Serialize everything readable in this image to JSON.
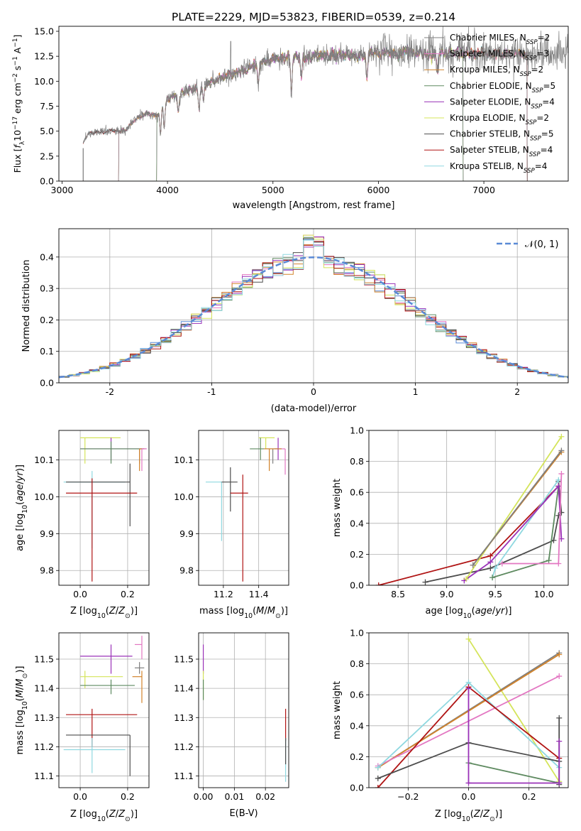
{
  "title": "PLATE=2229, MJD=53823, FIBERID=0539, z=0.214",
  "colors": {
    "Chabrier MILES": "#7f7f7f",
    "Salpeter MILES": "#e377c2",
    "Kroupa MILES": "#d2832a",
    "Chabrier ELODIE": "#5e8a60",
    "Salpeter ELODIE": "#9a32b8",
    "Kroupa ELODIE": "#d4e45a",
    "Chabrier STELIB": "#4d4d4d",
    "Salpeter STELIB": "#b01414",
    "Kroupa STELIB": "#8fd8e0",
    "gaussian": "#5a8ad6"
  },
  "chart_data": [
    {
      "id": "spectrum",
      "type": "line",
      "xlabel": "wavelength [Angstrom, rest frame]",
      "ylabel": "Flux [f_λ 10^-17 erg cm^-2 s^-1 A^-1]",
      "xlim": [
        2970,
        7800
      ],
      "ylim": [
        0,
        15.5
      ],
      "xticks": [
        3000,
        4000,
        5000,
        6000,
        7000
      ],
      "yticks": [
        0.0,
        2.5,
        5.0,
        7.5,
        10.0,
        12.5,
        15.0
      ],
      "legend_position": "top-right",
      "legend": [
        {
          "name": "Chabrier MILES",
          "nssp": "2"
        },
        {
          "name": "Salpeter MILES",
          "nssp": "3"
        },
        {
          "name": "Kroupa MILES",
          "nssp": "2"
        },
        {
          "name": "Chabrier ELODIE",
          "nssp": "5"
        },
        {
          "name": "Salpeter ELODIE",
          "nssp": "4"
        },
        {
          "name": "Kroupa ELODIE",
          "nssp": "2"
        },
        {
          "name": "Chabrier STELIB",
          "nssp": "5"
        },
        {
          "name": "Salpeter STELIB",
          "nssp": "4"
        },
        {
          "name": "Kroupa STELIB",
          "nssp": "4"
        }
      ],
      "continuum": [
        [
          3200,
          3.8
        ],
        [
          3250,
          4.8
        ],
        [
          3400,
          5.0
        ],
        [
          3600,
          5.0
        ],
        [
          3700,
          6.2
        ],
        [
          3800,
          6.8
        ],
        [
          3900,
          6.5
        ],
        [
          4000,
          8.3
        ],
        [
          4200,
          9.0
        ],
        [
          4400,
          9.8
        ],
        [
          4600,
          10.6
        ],
        [
          4800,
          11.5
        ],
        [
          5000,
          12.2
        ],
        [
          5300,
          12.5
        ],
        [
          5600,
          12.6
        ],
        [
          6000,
          12.8
        ],
        [
          6500,
          12.8
        ],
        [
          7000,
          12.8
        ],
        [
          7500,
          12.7
        ],
        [
          7800,
          12.6
        ]
      ],
      "data_range_x": [
        3200,
        7800
      ],
      "model_ranges": {
        "MILES": [
          3540,
          7410
        ],
        "ELODIE": [
          3900,
          6800
        ],
        "STELIB": [
          3200,
          7410
        ]
      }
    },
    {
      "id": "residuals",
      "type": "step",
      "xlabel": "(data-model)/error",
      "ylabel": "Normed distribution",
      "xlim": [
        -2.5,
        2.5
      ],
      "ylim": [
        0,
        0.49
      ],
      "xticks": [
        -2,
        -1,
        0,
        1,
        2
      ],
      "yticks": [
        0.0,
        0.1,
        0.2,
        0.3,
        0.4
      ],
      "gaussian_label": "𝒩(0, 1)",
      "gaussian_mean": 0,
      "gaussian_sigma": 1,
      "bin_width": 0.1
    },
    {
      "id": "age-vs-Z",
      "type": "errorbar",
      "xlabel": "Z [log10(Z/Z⊙)]",
      "ylabel": "age [log10(age/yr)]",
      "xlim": [
        -0.09,
        0.29
      ],
      "ylim": [
        9.76,
        10.18
      ],
      "xticks": [
        0.0,
        0.2
      ],
      "yticks": [
        9.8,
        9.9,
        10.0,
        10.1
      ],
      "points": [
        {
          "model": "Kroupa ELODIE",
          "x": 0.02,
          "xerr": [
            0.02,
            0.15
          ],
          "y": 10.16,
          "yerr": [
            0.07,
            0.0
          ]
        },
        {
          "model": "Salpeter ELODIE",
          "x": 0.13,
          "xerr": [
            0.13,
            0.15
          ],
          "y": 10.13,
          "yerr": [
            0.03,
            0.03
          ]
        },
        {
          "model": "Chabrier ELODIE",
          "x": 0.13,
          "xerr": [
            0.13,
            0.12
          ],
          "y": 10.13,
          "yerr": [
            0.04,
            0.02
          ]
        },
        {
          "model": "Chabrier MILES",
          "x": 0.25,
          "xerr": [
            0.0,
            0.02
          ],
          "y": 10.13,
          "yerr": [
            0.04,
            0.0
          ]
        },
        {
          "model": "Kroupa MILES",
          "x": 0.25,
          "xerr": [
            0.0,
            0.02
          ],
          "y": 10.13,
          "yerr": [
            0.06,
            0.0
          ]
        },
        {
          "model": "Salpeter MILES",
          "x": 0.26,
          "xerr": [
            0.0,
            0.02
          ],
          "y": 10.13,
          "yerr": [
            0.06,
            0.0
          ]
        },
        {
          "model": "Kroupa STELIB",
          "x": 0.05,
          "xerr": [
            0.12,
            0.14
          ],
          "y": 10.04,
          "yerr": [
            0.18,
            0.03
          ]
        },
        {
          "model": "Chabrier STELIB",
          "x": 0.21,
          "xerr": [
            0.27,
            0.0
          ],
          "y": 10.04,
          "yerr": [
            0.12,
            0.05
          ]
        },
        {
          "model": "Salpeter STELIB",
          "x": 0.05,
          "xerr": [
            0.11,
            0.19
          ],
          "y": 10.01,
          "yerr": [
            0.24,
            0.04
          ]
        }
      ]
    },
    {
      "id": "age-vs-mass",
      "type": "errorbar",
      "xlabel": "mass [log10(M/M⊙)]",
      "xlim": [
        11.06,
        11.57
      ],
      "ylim": [
        9.76,
        10.18
      ],
      "xticks": [
        11.2,
        11.4
      ],
      "yticks": [
        9.8,
        9.9,
        10.0,
        10.1
      ],
      "points": [
        {
          "model": "Kroupa ELODIE",
          "x": 11.44,
          "xerr": [
            0.04,
            0.05
          ],
          "y": 10.16,
          "yerr": [
            0.03,
            0.0
          ]
        },
        {
          "model": "Salpeter ELODIE",
          "x": 11.51,
          "xerr": [
            0.02,
            0.02
          ],
          "y": 10.13,
          "yerr": [
            0.03,
            0.03
          ]
        },
        {
          "model": "Chabrier ELODIE",
          "x": 11.41,
          "xerr": [
            0.06,
            0.02
          ],
          "y": 10.13,
          "yerr": [
            0.03,
            0.03
          ]
        },
        {
          "model": "Chabrier MILES",
          "x": 11.48,
          "xerr": [
            0.05,
            0.03
          ],
          "y": 10.13,
          "yerr": [
            0.04,
            0.0
          ]
        },
        {
          "model": "Kroupa MILES",
          "x": 11.46,
          "xerr": [
            0.03,
            0.07
          ],
          "y": 10.13,
          "yerr": [
            0.06,
            0.0
          ]
        },
        {
          "model": "Salpeter MILES",
          "x": 11.55,
          "xerr": [
            0.02,
            0.0
          ],
          "y": 10.13,
          "yerr": [
            0.07,
            0.0
          ]
        },
        {
          "model": "Kroupa STELIB",
          "x": 11.19,
          "xerr": [
            0.09,
            0.0
          ],
          "y": 10.04,
          "yerr": [
            0.16,
            0.0
          ]
        },
        {
          "model": "Chabrier STELIB",
          "x": 11.24,
          "xerr": [
            0.05,
            0.04
          ],
          "y": 10.04,
          "yerr": [
            0.08,
            0.04
          ]
        },
        {
          "model": "Salpeter STELIB",
          "x": 11.31,
          "xerr": [
            0.07,
            0.03
          ],
          "y": 10.01,
          "yerr": [
            0.24,
            0.05
          ]
        }
      ]
    },
    {
      "id": "mass-weight-vs-age",
      "type": "line",
      "xlabel": "age [log10(age/yr)]",
      "ylabel": "mass weight",
      "xlim": [
        8.2,
        10.25
      ],
      "ylim": [
        0,
        1.0
      ],
      "xticks": [
        8.5,
        9.0,
        9.5,
        10.0
      ],
      "yticks": [
        0.0,
        0.2,
        0.4,
        0.6,
        0.8,
        1.0
      ],
      "series": [
        {
          "model": "Salpeter STELIB",
          "points": [
            [
              8.3,
              0.0
            ],
            [
              9.45,
              0.19
            ],
            [
              10.15,
              0.64
            ]
          ]
        },
        {
          "model": "Chabrier STELIB",
          "points": [
            [
              8.78,
              0.02
            ],
            [
              9.45,
              0.11
            ],
            [
              10.1,
              0.29
            ],
            [
              10.15,
              0.45
            ],
            [
              10.18,
              0.47
            ],
            [
              10.15,
              0.67
            ]
          ]
        },
        {
          "model": "Kroupa STELIB",
          "points": [
            [
              9.47,
              0.05
            ],
            [
              9.5,
              0.11
            ],
            [
              10.15,
              0.68
            ]
          ]
        },
        {
          "model": "Chabrier ELODIE",
          "points": [
            [
              9.47,
              0.05
            ],
            [
              10.05,
              0.16
            ],
            [
              10.15,
              0.64
            ]
          ]
        },
        {
          "model": "Salpeter ELODIE",
          "points": [
            [
              9.18,
              0.03
            ],
            [
              9.45,
              0.15
            ],
            [
              10.15,
              0.64
            ],
            [
              10.18,
              0.3
            ]
          ]
        },
        {
          "model": "Kroupa ELODIE",
          "points": [
            [
              9.2,
              0.04
            ],
            [
              10.18,
              0.96
            ]
          ]
        },
        {
          "model": "Salpeter MILES",
          "points": [
            [
              9.57,
              0.14
            ],
            [
              10.15,
              0.14
            ],
            [
              10.18,
              0.72
            ]
          ]
        },
        {
          "model": "Kroupa MILES",
          "points": [
            [
              9.27,
              0.13
            ],
            [
              10.18,
              0.86
            ]
          ]
        },
        {
          "model": "Chabrier MILES",
          "points": [
            [
              9.27,
              0.13
            ],
            [
              10.18,
              0.87
            ]
          ]
        }
      ]
    },
    {
      "id": "mass-vs-Z",
      "type": "errorbar",
      "xlabel": "Z [log10(Z/Z⊙)]",
      "ylabel": "mass [log10(M/M⊙)]",
      "xlim": [
        -0.09,
        0.29
      ],
      "ylim": [
        11.06,
        11.59
      ],
      "xticks": [
        0.0,
        0.2
      ],
      "yticks": [
        11.1,
        11.2,
        11.3,
        11.4,
        11.5
      ],
      "points": [
        {
          "model": "Salpeter MILES",
          "x": 0.26,
          "xerr": [
            0.03,
            0.0
          ],
          "y": 11.55,
          "yerr": [
            0.05,
            0.03
          ]
        },
        {
          "model": "Salpeter ELODIE",
          "x": 0.13,
          "xerr": [
            0.13,
            0.09
          ],
          "y": 11.51,
          "yerr": [
            0.06,
            0.04
          ]
        },
        {
          "model": "Kroupa MILES",
          "x": 0.26,
          "xerr": [
            0.04,
            0.0
          ],
          "y": 11.44,
          "yerr": [
            0.09,
            0.02
          ]
        },
        {
          "model": "Chabrier MILES",
          "x": 0.25,
          "xerr": [
            0.02,
            0.02
          ],
          "y": 11.47,
          "yerr": [
            0.02,
            0.02
          ]
        },
        {
          "model": "Kroupa ELODIE",
          "x": 0.02,
          "xerr": [
            0.02,
            0.16
          ],
          "y": 11.44,
          "yerr": [
            0.04,
            0.02
          ]
        },
        {
          "model": "Chabrier ELODIE",
          "x": 0.13,
          "xerr": [
            0.13,
            0.1
          ],
          "y": 11.41,
          "yerr": [
            0.03,
            0.02
          ]
        },
        {
          "model": "Salpeter STELIB",
          "x": 0.05,
          "xerr": [
            0.11,
            0.19
          ],
          "y": 11.31,
          "yerr": [
            0.11,
            0.02
          ]
        },
        {
          "model": "Chabrier STELIB",
          "x": 0.21,
          "xerr": [
            0.27,
            0.0
          ],
          "y": 11.24,
          "yerr": [
            0.14,
            0.0
          ]
        },
        {
          "model": "Kroupa STELIB",
          "x": 0.05,
          "xerr": [
            0.12,
            0.14
          ],
          "y": 11.19,
          "yerr": [
            0.08,
            0.04
          ]
        }
      ]
    },
    {
      "id": "mass-vs-EBV",
      "type": "errorbar",
      "xlabel": "E(B-V)",
      "xlim": [
        -0.0015,
        0.0275
      ],
      "ylim": [
        11.06,
        11.59
      ],
      "xticks": [
        0.0,
        0.01,
        0.02
      ],
      "yticks": [
        11.1,
        11.2,
        11.3,
        11.4,
        11.5
      ],
      "points": [
        {
          "model": "Salpeter ELODIE",
          "x": 0.0,
          "xerr": [
            0,
            0
          ],
          "y": 11.51,
          "yerr": [
            0.06,
            0.04
          ]
        },
        {
          "model": "Kroupa ELODIE",
          "x": 0.0,
          "xerr": [
            0,
            0
          ],
          "y": 11.44,
          "yerr": [
            0.08,
            0.02
          ]
        },
        {
          "model": "Chabrier ELODIE",
          "x": 0.0,
          "xerr": [
            0,
            0
          ],
          "y": 11.41,
          "yerr": [
            0.05,
            0.02
          ]
        },
        {
          "model": "Salpeter STELIB",
          "x": 0.0265,
          "xerr": [
            0,
            0
          ],
          "y": 11.27,
          "yerr": [
            0.05,
            0.06
          ]
        },
        {
          "model": "Kroupa STELIB",
          "x": 0.0265,
          "xerr": [
            0,
            0
          ],
          "y": 11.16,
          "yerr": [
            0.08,
            0.07
          ]
        },
        {
          "model": "Chabrier STELIB",
          "x": 0.0265,
          "xerr": [
            0,
            0
          ],
          "y": 11.18,
          "yerr": [
            0.04,
            0.05
          ]
        }
      ]
    },
    {
      "id": "mass-weight-vs-Z",
      "type": "line",
      "xlabel": "Z [log10(Z/Z⊙)]",
      "ylabel": "mass weight",
      "xlim": [
        -0.33,
        0.33
      ],
      "ylim": [
        0,
        1.0
      ],
      "xticks": [
        -0.2,
        0.0,
        0.2
      ],
      "yticks": [
        0.0,
        0.2,
        0.4,
        0.6,
        0.8,
        1.0
      ],
      "series": [
        {
          "model": "Kroupa ELODIE",
          "points": [
            [
              0.0,
              0.96
            ],
            [
              0.3,
              0.04
            ]
          ]
        },
        {
          "model": "Chabrier MILES",
          "points": [
            [
              -0.3,
              0.13
            ],
            [
              0.3,
              0.87
            ]
          ]
        },
        {
          "model": "Kroupa MILES",
          "points": [
            [
              -0.3,
              0.13
            ],
            [
              0.3,
              0.86
            ]
          ]
        },
        {
          "model": "Salpeter MILES",
          "points": [
            [
              -0.3,
              0.14
            ],
            [
              0.3,
              0.72
            ]
          ]
        },
        {
          "model": "Kroupa STELIB",
          "points": [
            [
              -0.3,
              0.13
            ],
            [
              0.0,
              0.68
            ],
            [
              0.3,
              0.13
            ]
          ]
        },
        {
          "model": "Salpeter STELIB",
          "points": [
            [
              -0.3,
              0.0
            ],
            [
              0.0,
              0.65
            ],
            [
              0.3,
              0.19
            ]
          ]
        },
        {
          "model": "Chabrier STELIB",
          "points": [
            [
              -0.3,
              0.06
            ],
            [
              0.0,
              0.29
            ],
            [
              0.3,
              0.17
            ],
            [
              0.3,
              0.45
            ],
            [
              0.3,
              0.02
            ]
          ]
        },
        {
          "model": "Chabrier ELODIE",
          "points": [
            [
              0.0,
              0.16
            ],
            [
              0.3,
              0.03
            ]
          ]
        },
        {
          "model": "Salpeter ELODIE",
          "points": [
            [
              0.0,
              0.64
            ],
            [
              0.0,
              0.03
            ],
            [
              0.3,
              0.03
            ],
            [
              0.3,
              0.3
            ]
          ]
        }
      ]
    }
  ]
}
